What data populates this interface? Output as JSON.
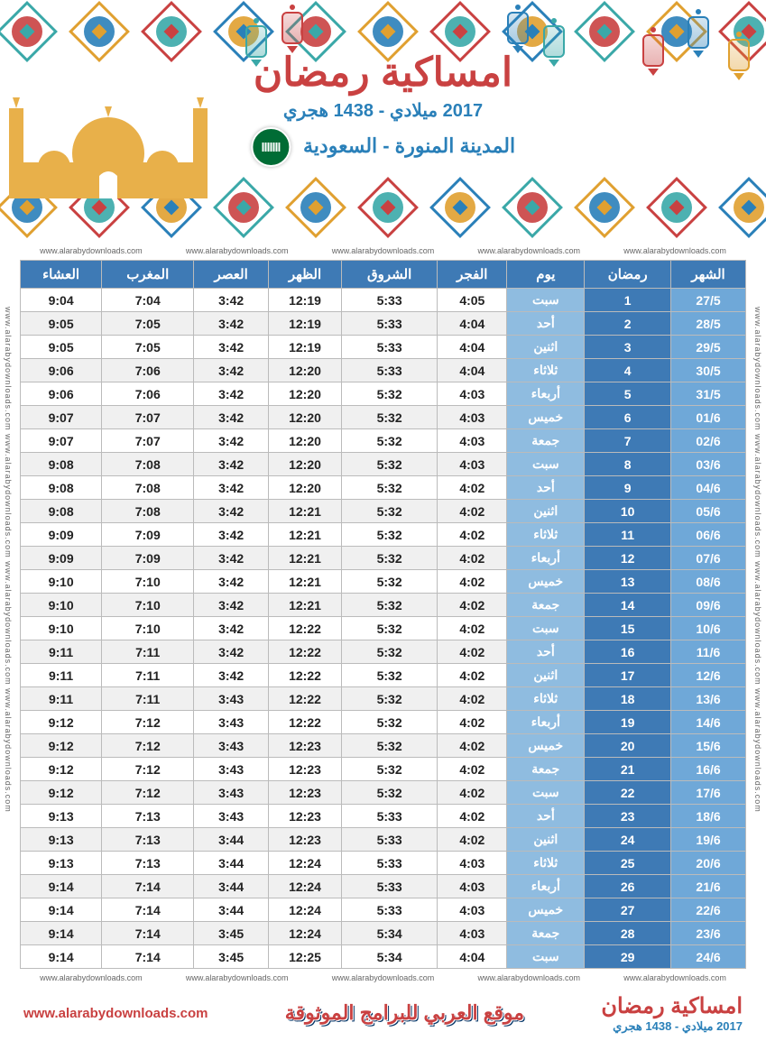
{
  "header": {
    "main_title": "امساكية رمضان",
    "title_color": "#c94141",
    "year_line": "2017 ميلادي - 1438 هجري",
    "year_color": "#2a80b9",
    "location": "المدينة المنورة - السعودية",
    "location_color": "#2a80b9",
    "flag_bg": "#006c35"
  },
  "watermark": "www.alarabydownloads.com",
  "colors": {
    "th_month": "#3e7ab5",
    "th_ramadan": "#3e7ab5",
    "th_day": "#3e7ab5",
    "th_time": "#3e7ab5",
    "td_month": "#6fa8d8",
    "td_ramadan": "#3e7ab5",
    "td_day": "#8fbce0",
    "border": "#bbbbbb",
    "row_alt": "#f0f0f0",
    "pattern_teal": "#3aa8a8",
    "pattern_gold": "#e0a030",
    "pattern_red": "#c94141",
    "pattern_blue": "#2a80b9",
    "mosque": "#e8b04a"
  },
  "table": {
    "headers": [
      "الشهر",
      "رمضان",
      "يوم",
      "الفجر",
      "الشروق",
      "الظهر",
      "العصر",
      "المغرب",
      "العشاء"
    ],
    "rows": [
      {
        "month": "27/5",
        "ramadan": "1",
        "day": "سبت",
        "fajr": "4:05",
        "shuruq": "5:33",
        "dhuhr": "12:19",
        "asr": "3:42",
        "maghrib": "7:04",
        "isha": "9:04"
      },
      {
        "month": "28/5",
        "ramadan": "2",
        "day": "أحد",
        "fajr": "4:04",
        "shuruq": "5:33",
        "dhuhr": "12:19",
        "asr": "3:42",
        "maghrib": "7:05",
        "isha": "9:05"
      },
      {
        "month": "29/5",
        "ramadan": "3",
        "day": "اثنين",
        "fajr": "4:04",
        "shuruq": "5:33",
        "dhuhr": "12:19",
        "asr": "3:42",
        "maghrib": "7:05",
        "isha": "9:05"
      },
      {
        "month": "30/5",
        "ramadan": "4",
        "day": "ثلاثاء",
        "fajr": "4:04",
        "shuruq": "5:33",
        "dhuhr": "12:20",
        "asr": "3:42",
        "maghrib": "7:06",
        "isha": "9:06"
      },
      {
        "month": "31/5",
        "ramadan": "5",
        "day": "أربعاء",
        "fajr": "4:03",
        "shuruq": "5:32",
        "dhuhr": "12:20",
        "asr": "3:42",
        "maghrib": "7:06",
        "isha": "9:06"
      },
      {
        "month": "01/6",
        "ramadan": "6",
        "day": "خميس",
        "fajr": "4:03",
        "shuruq": "5:32",
        "dhuhr": "12:20",
        "asr": "3:42",
        "maghrib": "7:07",
        "isha": "9:07"
      },
      {
        "month": "02/6",
        "ramadan": "7",
        "day": "جمعة",
        "fajr": "4:03",
        "shuruq": "5:32",
        "dhuhr": "12:20",
        "asr": "3:42",
        "maghrib": "7:07",
        "isha": "9:07"
      },
      {
        "month": "03/6",
        "ramadan": "8",
        "day": "سبت",
        "fajr": "4:03",
        "shuruq": "5:32",
        "dhuhr": "12:20",
        "asr": "3:42",
        "maghrib": "7:08",
        "isha": "9:08"
      },
      {
        "month": "04/6",
        "ramadan": "9",
        "day": "أحد",
        "fajr": "4:02",
        "shuruq": "5:32",
        "dhuhr": "12:20",
        "asr": "3:42",
        "maghrib": "7:08",
        "isha": "9:08"
      },
      {
        "month": "05/6",
        "ramadan": "10",
        "day": "اثنين",
        "fajr": "4:02",
        "shuruq": "5:32",
        "dhuhr": "12:21",
        "asr": "3:42",
        "maghrib": "7:08",
        "isha": "9:08"
      },
      {
        "month": "06/6",
        "ramadan": "11",
        "day": "ثلاثاء",
        "fajr": "4:02",
        "shuruq": "5:32",
        "dhuhr": "12:21",
        "asr": "3:42",
        "maghrib": "7:09",
        "isha": "9:09"
      },
      {
        "month": "07/6",
        "ramadan": "12",
        "day": "أربعاء",
        "fajr": "4:02",
        "shuruq": "5:32",
        "dhuhr": "12:21",
        "asr": "3:42",
        "maghrib": "7:09",
        "isha": "9:09"
      },
      {
        "month": "08/6",
        "ramadan": "13",
        "day": "خميس",
        "fajr": "4:02",
        "shuruq": "5:32",
        "dhuhr": "12:21",
        "asr": "3:42",
        "maghrib": "7:10",
        "isha": "9:10"
      },
      {
        "month": "09/6",
        "ramadan": "14",
        "day": "جمعة",
        "fajr": "4:02",
        "shuruq": "5:32",
        "dhuhr": "12:21",
        "asr": "3:42",
        "maghrib": "7:10",
        "isha": "9:10"
      },
      {
        "month": "10/6",
        "ramadan": "15",
        "day": "سبت",
        "fajr": "4:02",
        "shuruq": "5:32",
        "dhuhr": "12:22",
        "asr": "3:42",
        "maghrib": "7:10",
        "isha": "9:10"
      },
      {
        "month": "11/6",
        "ramadan": "16",
        "day": "أحد",
        "fajr": "4:02",
        "shuruq": "5:32",
        "dhuhr": "12:22",
        "asr": "3:42",
        "maghrib": "7:11",
        "isha": "9:11"
      },
      {
        "month": "12/6",
        "ramadan": "17",
        "day": "اثنين",
        "fajr": "4:02",
        "shuruq": "5:32",
        "dhuhr": "12:22",
        "asr": "3:42",
        "maghrib": "7:11",
        "isha": "9:11"
      },
      {
        "month": "13/6",
        "ramadan": "18",
        "day": "ثلاثاء",
        "fajr": "4:02",
        "shuruq": "5:32",
        "dhuhr": "12:22",
        "asr": "3:43",
        "maghrib": "7:11",
        "isha": "9:11"
      },
      {
        "month": "14/6",
        "ramadan": "19",
        "day": "أربعاء",
        "fajr": "4:02",
        "shuruq": "5:32",
        "dhuhr": "12:22",
        "asr": "3:43",
        "maghrib": "7:12",
        "isha": "9:12"
      },
      {
        "month": "15/6",
        "ramadan": "20",
        "day": "خميس",
        "fajr": "4:02",
        "shuruq": "5:32",
        "dhuhr": "12:23",
        "asr": "3:43",
        "maghrib": "7:12",
        "isha": "9:12"
      },
      {
        "month": "16/6",
        "ramadan": "21",
        "day": "جمعة",
        "fajr": "4:02",
        "shuruq": "5:32",
        "dhuhr": "12:23",
        "asr": "3:43",
        "maghrib": "7:12",
        "isha": "9:12"
      },
      {
        "month": "17/6",
        "ramadan": "22",
        "day": "سبت",
        "fajr": "4:02",
        "shuruq": "5:32",
        "dhuhr": "12:23",
        "asr": "3:43",
        "maghrib": "7:12",
        "isha": "9:12"
      },
      {
        "month": "18/6",
        "ramadan": "23",
        "day": "أحد",
        "fajr": "4:02",
        "shuruq": "5:33",
        "dhuhr": "12:23",
        "asr": "3:43",
        "maghrib": "7:13",
        "isha": "9:13"
      },
      {
        "month": "19/6",
        "ramadan": "24",
        "day": "اثنين",
        "fajr": "4:02",
        "shuruq": "5:33",
        "dhuhr": "12:23",
        "asr": "3:44",
        "maghrib": "7:13",
        "isha": "9:13"
      },
      {
        "month": "20/6",
        "ramadan": "25",
        "day": "ثلاثاء",
        "fajr": "4:03",
        "shuruq": "5:33",
        "dhuhr": "12:24",
        "asr": "3:44",
        "maghrib": "7:13",
        "isha": "9:13"
      },
      {
        "month": "21/6",
        "ramadan": "26",
        "day": "أربعاء",
        "fajr": "4:03",
        "shuruq": "5:33",
        "dhuhr": "12:24",
        "asr": "3:44",
        "maghrib": "7:14",
        "isha": "9:14"
      },
      {
        "month": "22/6",
        "ramadan": "27",
        "day": "خميس",
        "fajr": "4:03",
        "shuruq": "5:33",
        "dhuhr": "12:24",
        "asr": "3:44",
        "maghrib": "7:14",
        "isha": "9:14"
      },
      {
        "month": "23/6",
        "ramadan": "28",
        "day": "جمعة",
        "fajr": "4:03",
        "shuruq": "5:34",
        "dhuhr": "12:24",
        "asr": "3:45",
        "maghrib": "7:14",
        "isha": "9:14"
      },
      {
        "month": "24/6",
        "ramadan": "29",
        "day": "سبت",
        "fajr": "4:04",
        "shuruq": "5:34",
        "dhuhr": "12:25",
        "asr": "3:45",
        "maghrib": "7:14",
        "isha": "9:14"
      }
    ]
  },
  "footer": {
    "title": "امساكية رمضان",
    "title_color": "#c94141",
    "year": "2017 ميلادي - 1438 هجري",
    "center": "موقع العربي للبرامج الموثوقة",
    "center_color": "#c94141",
    "url": "www.alarabydownloads.com",
    "url_color": "#c94141"
  }
}
